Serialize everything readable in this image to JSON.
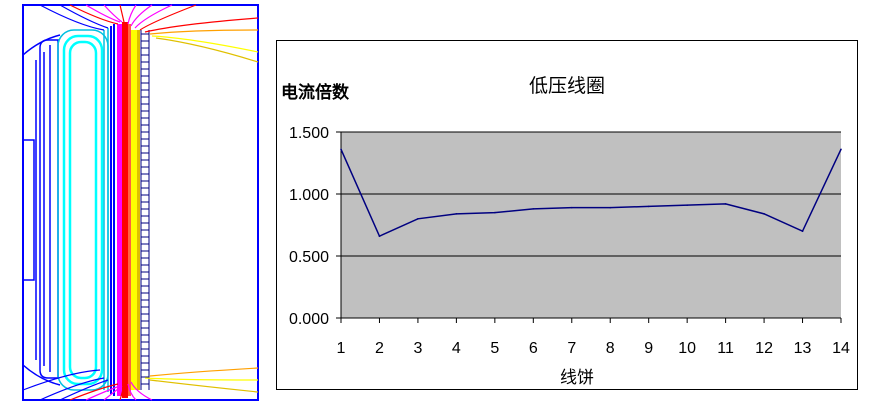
{
  "chart_data": {
    "type": "line",
    "title": "低压线圈",
    "ylabel": "电流倍数",
    "xlabel": "线饼",
    "x": [
      1,
      2,
      3,
      4,
      5,
      6,
      7,
      8,
      9,
      10,
      11,
      12,
      13,
      14
    ],
    "x_tick_labels": [
      "1",
      "2",
      "3",
      "4",
      "5",
      "6",
      "7",
      "8",
      "9",
      "10",
      "11",
      "12",
      "13",
      "14"
    ],
    "y_tick_labels": [
      "0.000",
      "0.500",
      "1.000",
      "1.500"
    ],
    "ylim": [
      0,
      1.5
    ],
    "grid": true,
    "series": [
      {
        "values": [
          1.36,
          0.66,
          0.8,
          0.84,
          0.85,
          0.88,
          0.89,
          0.89,
          0.9,
          0.91,
          0.92,
          0.84,
          0.7,
          1.36
        ]
      }
    ],
    "colors": {
      "plot_background": "#c0c0c0",
      "line": "#000080",
      "grid": "#000000"
    }
  },
  "field_plot": {
    "colors": [
      "#0000ff",
      "#00ffff",
      "#ff00ff",
      "#ff0000",
      "#ffff00",
      "#000080"
    ]
  }
}
